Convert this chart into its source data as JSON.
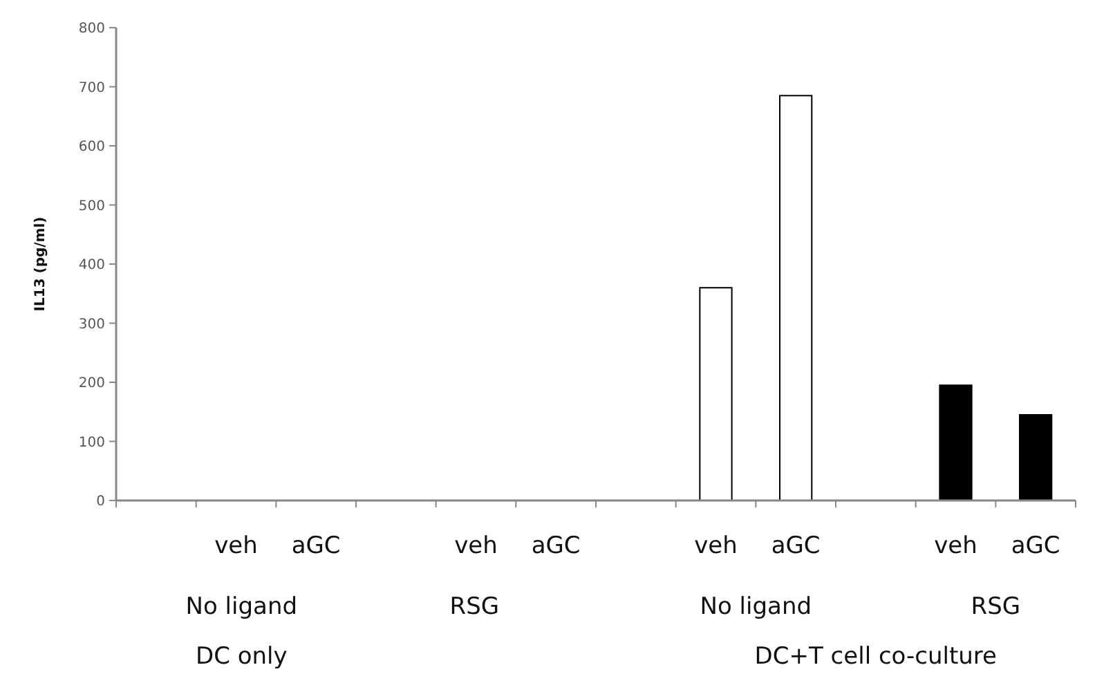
{
  "chart_data": {
    "type": "bar",
    "ylabel": "IL13 (pg/ml)",
    "categories": [
      null,
      "veh",
      "aGC",
      null,
      "veh",
      "aGC",
      null,
      "veh",
      "aGC",
      null,
      "veh",
      "aGC"
    ],
    "values": [
      null,
      0,
      0,
      null,
      0,
      0,
      null,
      360,
      685,
      null,
      195,
      145
    ],
    "colors": [
      null,
      "#ffffff",
      "#ffffff",
      null,
      "#ffffff",
      "#ffffff",
      null,
      "#ffffff",
      "#ffffff",
      null,
      "#000000",
      "#000000"
    ],
    "ylim": [
      0,
      800
    ],
    "yticks": [
      0,
      100,
      200,
      300,
      400,
      500,
      600,
      700,
      800
    ],
    "grid": false,
    "annotations": [
      "No ligand",
      "RSG",
      "No ligand",
      "RSG",
      "DC only",
      "DC+T cell co-culture"
    ]
  }
}
